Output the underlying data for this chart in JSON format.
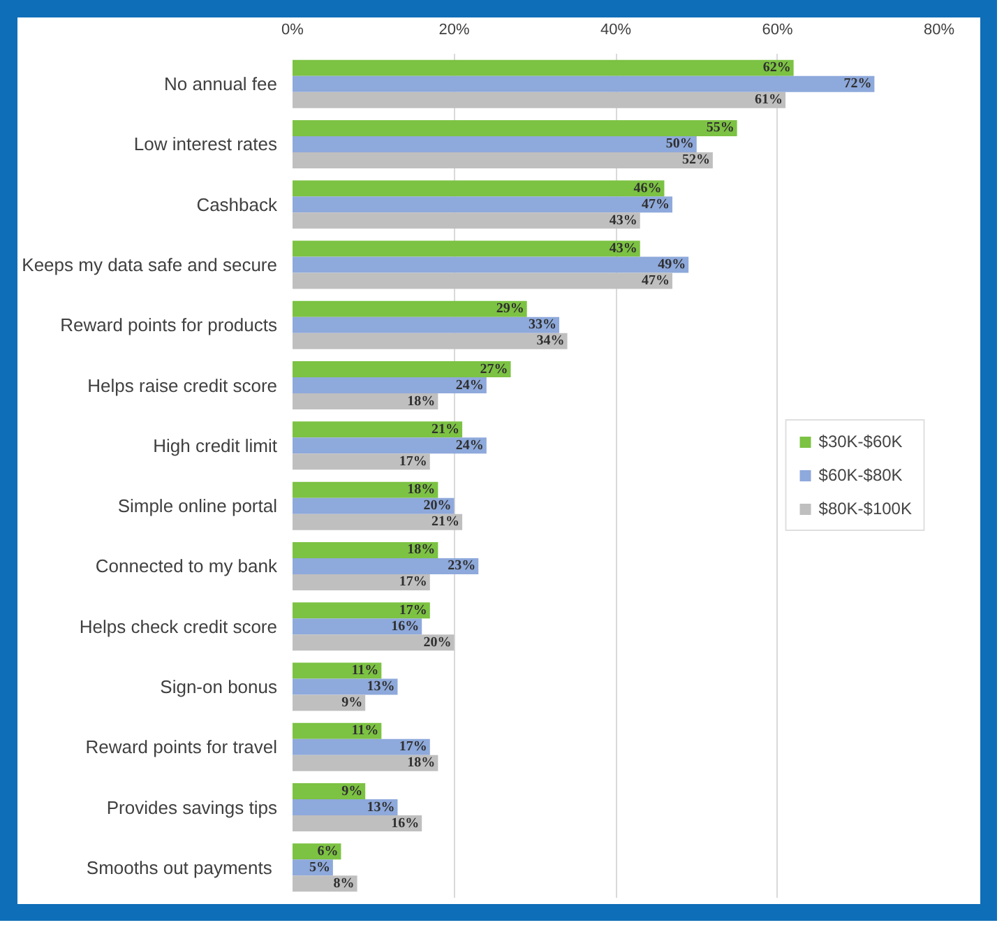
{
  "chart_data": {
    "type": "bar",
    "orientation": "horizontal",
    "categories": [
      "No annual fee",
      "Low interest rates",
      "Cashback",
      "Keeps my data safe and secure",
      "Reward points for products",
      "Helps raise credit score",
      "High credit limit",
      "Simple online portal",
      "Connected to my bank",
      "Helps check credit score",
      "Sign-on bonus",
      "Reward points for travel",
      "Provides savings tips",
      "Smooths out  payments"
    ],
    "series": [
      {
        "name": "$30K-$60K",
        "color": "#7cc243",
        "values": [
          62,
          55,
          46,
          43,
          29,
          27,
          21,
          18,
          18,
          17,
          11,
          11,
          9,
          6
        ],
        "value_labels": [
          "62%",
          "55%",
          "46%",
          "43%",
          "29%",
          "27%",
          "21%",
          "18%",
          "18%",
          "17%",
          "11%",
          "11%",
          "9%",
          "6%"
        ]
      },
      {
        "name": "$60K-$80K",
        "color": "#8ea9db",
        "values": [
          72,
          50,
          47,
          49,
          33,
          24,
          24,
          20,
          23,
          16,
          13,
          17,
          13,
          5
        ],
        "value_labels": [
          "72%",
          "50%",
          "47%",
          "49%",
          "33%",
          "24%",
          "24%",
          "20%",
          "23%",
          "16%",
          "13%",
          "17%",
          "13%",
          "5%"
        ]
      },
      {
        "name": "$80K-$100K",
        "color": "#bfbfbf",
        "values": [
          61,
          52,
          43,
          47,
          34,
          18,
          17,
          21,
          17,
          20,
          9,
          18,
          16,
          8
        ],
        "value_labels": [
          "61%",
          "52%",
          "43%",
          "47%",
          "34%",
          "18%",
          "17%",
          "21%",
          "17%",
          "20%",
          "9%",
          "18%",
          "16%",
          "8%"
        ]
      }
    ],
    "xlim": [
      0,
      80
    ],
    "xticks": [
      {
        "value": 0,
        "label": "0%"
      },
      {
        "value": 20,
        "label": "20%"
      },
      {
        "value": 40,
        "label": "40%"
      },
      {
        "value": 60,
        "label": "60%"
      },
      {
        "value": 80,
        "label": "80%"
      }
    ],
    "grid": "x",
    "legend": "right"
  }
}
